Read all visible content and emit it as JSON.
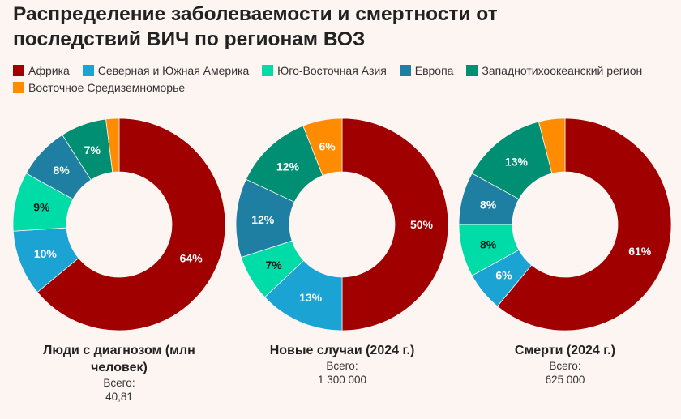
{
  "title": "Распределение заболеваемости и смертности от последствий ВИЧ по регионам ВОЗ",
  "legend": [
    {
      "label": "Африка",
      "color": "#a00000"
    },
    {
      "label": "Северная и Южная Америка",
      "color": "#1ba3d4"
    },
    {
      "label": "Юго-Восточная Азия",
      "color": "#00dca8"
    },
    {
      "label": "Европа",
      "color": "#1f7fa3"
    },
    {
      "label": "Западнотихоокеанский регион",
      "color": "#008f72"
    },
    {
      "label": "Восточное Средиземноморье",
      "color": "#ff8c00"
    }
  ],
  "chart_data": [
    {
      "type": "pie",
      "title": "Люди с диагнозом (млн человек)",
      "total_label": "Всего:",
      "total": "40,81",
      "categories": [
        "Африка",
        "Северная и Южная Америка",
        "Юго-Восточная Азия",
        "Европа",
        "Западнотихоокеанский регион",
        "Восточное Средиземноморье"
      ],
      "values": [
        64,
        10,
        9,
        8,
        7,
        2
      ]
    },
    {
      "type": "pie",
      "title": "Новые случаи (2024 г.)",
      "total_label": "Всего:",
      "total": "1 300 000",
      "categories": [
        "Африка",
        "Северная и Южная Америка",
        "Юго-Восточная Азия",
        "Европа",
        "Западнотихоокеанский регион",
        "Восточное Средиземноморье"
      ],
      "values": [
        50,
        13,
        7,
        12,
        12,
        6
      ]
    },
    {
      "type": "pie",
      "title": "Смерти (2024 г.)",
      "total_label": "Всего:",
      "total": "625 000",
      "categories": [
        "Африка",
        "Северная и Южная Америка",
        "Юго-Восточная Азия",
        "Европа",
        "Западнотихоокеанский регион",
        "Восточное Средиземноморье"
      ],
      "values": [
        61,
        6,
        8,
        8,
        13,
        4
      ]
    }
  ]
}
